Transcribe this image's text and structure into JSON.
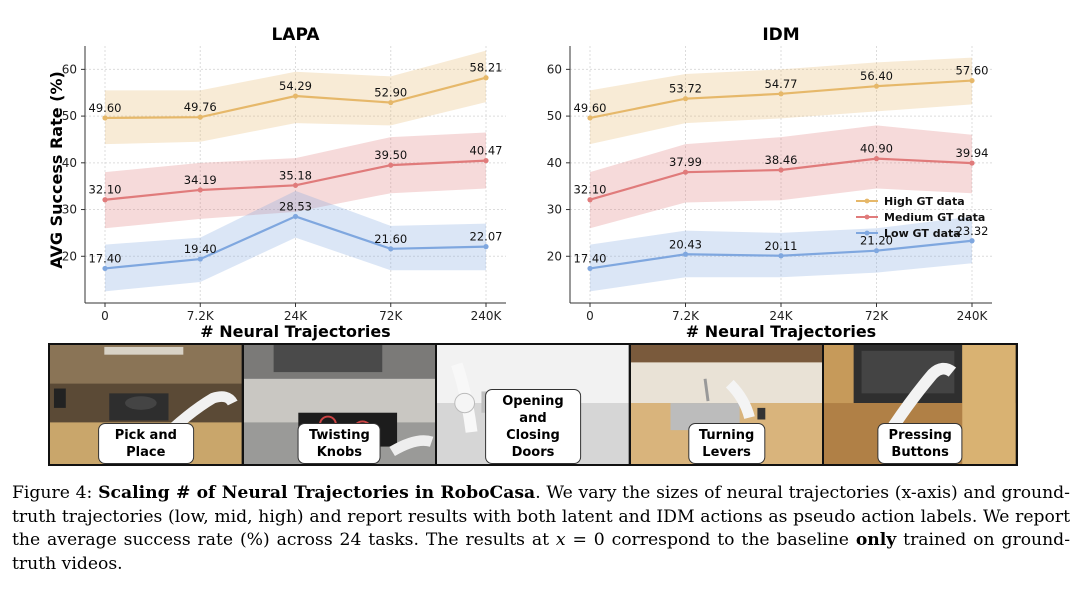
{
  "chart_data": [
    {
      "type": "line",
      "title": "LAPA",
      "xlabel": "# Neural Trajectories",
      "ylabel": "AVG Success Rate (%)",
      "categories": [
        "0",
        "7.2K",
        "24K",
        "72K",
        "240K"
      ],
      "ylim": [
        10,
        65
      ],
      "yticks": [
        20,
        30,
        40,
        50,
        60
      ],
      "grid": true,
      "series": [
        {
          "name": "High GT data",
          "color": "#e6b86a",
          "values": [
            49.6,
            49.76,
            54.29,
            52.9,
            58.21
          ],
          "labels": [
            "49.60",
            "49.76",
            "54.29",
            "52.90",
            "58.21"
          ],
          "band": [
            [
              44.0,
              55.5
            ],
            [
              44.5,
              55.5
            ],
            [
              48.5,
              59.5
            ],
            [
              48.0,
              58.5
            ],
            [
              53.0,
              64.0
            ]
          ]
        },
        {
          "name": "Medium GT data",
          "color": "#e07b7b",
          "values": [
            32.1,
            34.19,
            35.18,
            39.5,
            40.47
          ],
          "labels": [
            "32.10",
            "34.19",
            "35.18",
            "39.50",
            "40.47"
          ],
          "band": [
            [
              26.0,
              38.0
            ],
            [
              28.0,
              40.0
            ],
            [
              29.5,
              41.0
            ],
            [
              33.5,
              45.5
            ],
            [
              34.5,
              46.5
            ]
          ]
        },
        {
          "name": "Low GT data",
          "color": "#7fa7df",
          "values": [
            17.4,
            19.4,
            28.53,
            21.6,
            22.07
          ],
          "labels": [
            "17.40",
            "19.40",
            "28.53",
            "21.60",
            "22.07"
          ],
          "band": [
            [
              12.5,
              22.5
            ],
            [
              14.5,
              24.0
            ],
            [
              24.0,
              34.0
            ],
            [
              17.0,
              26.5
            ],
            [
              17.0,
              27.0
            ]
          ]
        }
      ]
    },
    {
      "type": "line",
      "title": "IDM",
      "xlabel": "# Neural Trajectories",
      "ylabel": "",
      "categories": [
        "0",
        "7.2K",
        "24K",
        "72K",
        "240K"
      ],
      "ylim": [
        10,
        65
      ],
      "yticks": [
        20,
        30,
        40,
        50,
        60
      ],
      "grid": true,
      "legend": "right-middle",
      "series": [
        {
          "name": "High GT data",
          "color": "#e6b86a",
          "values": [
            49.6,
            53.72,
            54.77,
            56.4,
            57.6
          ],
          "labels": [
            "49.60",
            "53.72",
            "54.77",
            "56.40",
            "57.60"
          ],
          "band": [
            [
              44.0,
              55.5
            ],
            [
              48.5,
              59.0
            ],
            [
              49.5,
              60.0
            ],
            [
              51.0,
              61.5
            ],
            [
              52.5,
              62.5
            ]
          ]
        },
        {
          "name": "Medium GT data",
          "color": "#e07b7b",
          "values": [
            32.1,
            37.99,
            38.46,
            40.9,
            39.94
          ],
          "labels": [
            "32.10",
            "37.99",
            "38.46",
            "40.90",
            "39.94"
          ],
          "band": [
            [
              26.0,
              38.0
            ],
            [
              31.5,
              44.0
            ],
            [
              32.0,
              45.5
            ],
            [
              34.5,
              48.0
            ],
            [
              33.5,
              46.0
            ]
          ]
        },
        {
          "name": "Low GT data",
          "color": "#7fa7df",
          "values": [
            17.4,
            20.43,
            20.11,
            21.2,
            23.32
          ],
          "labels": [
            "17.40",
            "20.43",
            "20.11",
            "21.20",
            "23.32"
          ],
          "band": [
            [
              12.5,
              22.5
            ],
            [
              15.5,
              25.5
            ],
            [
              15.5,
              25.0
            ],
            [
              16.5,
              26.0
            ],
            [
              18.5,
              28.5
            ]
          ]
        }
      ]
    }
  ],
  "tasks": [
    {
      "label": "Pick and Place"
    },
    {
      "label": "Twisting\nKnobs"
    },
    {
      "label": "Opening and Closing\nDoors"
    },
    {
      "label": "Turning\nLevers"
    },
    {
      "label": "Pressing\nButtons"
    }
  ],
  "caption": {
    "prefix": "Figure 4: ",
    "title": "Scaling # of Neural Trajectories in RoboCasa",
    "body1": ".  We vary the sizes of neural trajectories (x-axis) and ground-truth trajectories (low, mid, high) and report results with both latent and IDM actions as pseudo action labels. We report the average success rate (%) across 24 tasks. The results at ",
    "math_var": "x",
    "math_rest": " = 0 correspond to the baseline ",
    "bold_word": "only",
    "body2": " trained on ground-truth videos."
  }
}
